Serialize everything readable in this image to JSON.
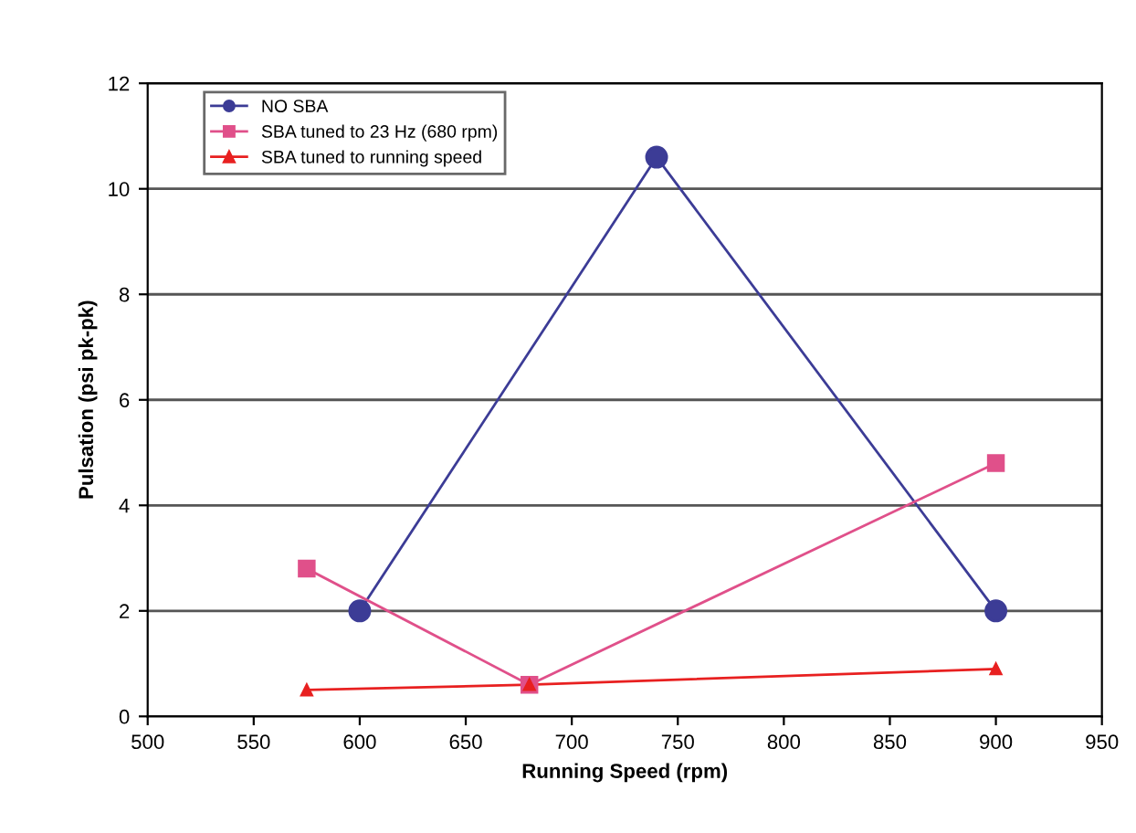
{
  "chart_data": {
    "type": "line",
    "xlabel": "Running Speed (rpm)",
    "ylabel": "Pulsation (psi pk-pk)",
    "xlim": [
      500,
      950
    ],
    "xticks": [
      500,
      550,
      600,
      650,
      700,
      750,
      800,
      850,
      900,
      950
    ],
    "ylim": [
      0,
      12
    ],
    "yticks": [
      0,
      2,
      4,
      6,
      8,
      10,
      12
    ],
    "grid": "y",
    "legend": "top left",
    "line_style": "solid",
    "series": [
      {
        "name": "NO SBA",
        "color": "#3c3c96",
        "marker": "circle",
        "x": [
          600,
          740,
          900
        ],
        "values": [
          2,
          10.6,
          2
        ]
      },
      {
        "name": "SBA tuned to 23 Hz (680 rpm)",
        "color": "#e0508a",
        "marker": "square",
        "x": [
          575,
          680,
          900
        ],
        "values": [
          2.8,
          0.6,
          4.8
        ]
      },
      {
        "name": "SBA tuned to running speed",
        "color": "#e82020",
        "marker": "triangle",
        "x": [
          575,
          680,
          900
        ],
        "values": [
          0.5,
          0.6,
          0.9
        ]
      }
    ]
  }
}
